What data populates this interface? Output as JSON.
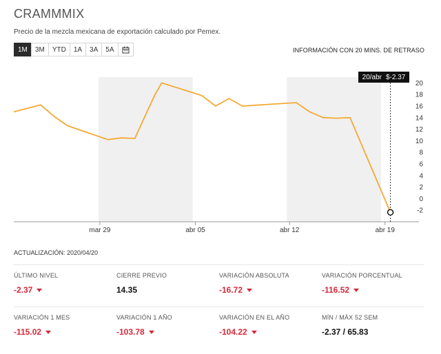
{
  "header": {
    "title": "CRAMMMIX",
    "subtitle": "Precio de la mezcla mexicana de exportación calculado por Pemex.",
    "delay_notice": "INFORMACIÓN CON 20 MINS. DE RETRASO"
  },
  "range_buttons": [
    {
      "label": "1M",
      "active": true
    },
    {
      "label": "3M",
      "active": false
    },
    {
      "label": "YTD",
      "active": false
    },
    {
      "label": "1A",
      "active": false
    },
    {
      "label": "3A",
      "active": false
    },
    {
      "label": "5A",
      "active": false
    }
  ],
  "calendar_icon": "calendar-icon",
  "tooltip": {
    "date": "20/abr",
    "value": "$-2.37"
  },
  "chart_data": {
    "type": "line",
    "x": [
      0,
      2,
      3,
      4,
      7,
      8,
      9,
      10,
      10.5,
      11,
      14,
      15,
      16,
      17,
      21,
      22,
      23,
      24,
      25,
      28
    ],
    "y": [
      15,
      16.2,
      14.2,
      12.6,
      10.2,
      10.5,
      10.4,
      15.5,
      18,
      20,
      17.8,
      16,
      17.3,
      16,
      16.6,
      15,
      14,
      13.9,
      14,
      -2.37
    ],
    "x_ticks": [
      {
        "pos": 6.4,
        "label": "mar 29"
      },
      {
        "pos": 13.5,
        "label": "abr 05"
      },
      {
        "pos": 20.5,
        "label": "abr 12"
      },
      {
        "pos": 27.6,
        "label": "abr 19"
      }
    ],
    "weekend_shading": [
      [
        6.3,
        13.3
      ],
      [
        20.3,
        27.3
      ]
    ],
    "yticks": [
      -2,
      0,
      2,
      4,
      6,
      8,
      10,
      12,
      14,
      16,
      18,
      20
    ],
    "ylim": [
      -4,
      21
    ],
    "xlim": [
      0,
      29.2
    ],
    "color": "#f5a833"
  },
  "updated": "ACTUALIZACIÓN: 2020/04/20",
  "stats": [
    [
      {
        "label": "ÚLTIMO NIVEL",
        "value": "-2.37",
        "negative": true
      },
      {
        "label": "CIERRE PREVIO",
        "value": "14.35",
        "negative": false
      },
      {
        "label": "VARIACIÓN ABSOLUTA",
        "value": "-16.72",
        "negative": true
      },
      {
        "label": "VARIACIÓN PORCENTUAL",
        "value": "-116.52",
        "negative": true
      }
    ],
    [
      {
        "label": "VARIACIÓN 1 MES",
        "value": "-115.02",
        "negative": true
      },
      {
        "label": "VARIACIÓN 1 AÑO",
        "value": "-103.78",
        "negative": true
      },
      {
        "label": "VARIACIÓN EN EL AÑO",
        "value": "-104.22",
        "negative": true
      },
      {
        "label": "MÍN / MÁX 52 SEM",
        "value": "-2.37 / 65.83",
        "negative": false
      }
    ]
  ]
}
